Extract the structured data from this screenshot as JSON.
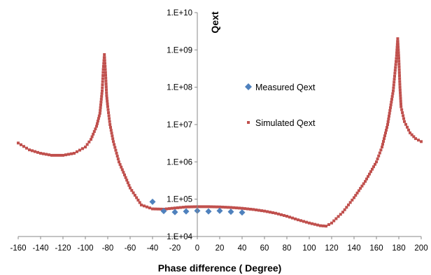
{
  "chart_data": {
    "type": "scatter",
    "xlabel": "Phase difference ( Degree)",
    "ylabel": "Qext",
    "xlim": [
      -160,
      200
    ],
    "ylim": [
      10000,
      10000000000
    ],
    "y_scale": "log",
    "x_ticks": [
      -160,
      -140,
      -120,
      -100,
      -80,
      -60,
      -40,
      -20,
      0,
      20,
      40,
      60,
      80,
      100,
      120,
      140,
      160,
      180,
      200
    ],
    "x_tick_labels": [
      "-160",
      "-140",
      "-120",
      "-100",
      "-80",
      "-60",
      "-40",
      "-20",
      "0",
      "20",
      "40",
      "60",
      "80",
      "100",
      "120",
      "140",
      "160",
      "180",
      "200"
    ],
    "y_ticks": [
      10000,
      100000,
      1000000,
      10000000,
      100000000,
      1000000000,
      10000000000
    ],
    "y_tick_labels": [
      "1.E+04",
      "1.E+05",
      "1.E+06",
      "1.E+07",
      "1.E+08",
      "1.E+09",
      "1.E+10"
    ],
    "grid": false,
    "legend_position": "center",
    "series": [
      {
        "name": "Measured Qext",
        "marker": "diamond",
        "color": "#4f81bd",
        "x": [
          -40,
          -30,
          -20,
          -10,
          0,
          10,
          20,
          30,
          40
        ],
        "y": [
          85000,
          48000,
          45000,
          47000,
          49000,
          47000,
          49000,
          46000,
          44000
        ]
      },
      {
        "name": "Simulated Qext",
        "marker": "square",
        "color": "#c0504d",
        "x": [
          -160,
          -150,
          -140,
          -130,
          -120,
          -110,
          -100,
          -95,
          -90,
          -87,
          -85,
          -84,
          -83,
          -82,
          -81,
          -80,
          -78,
          -75,
          -70,
          -60,
          -50,
          -40,
          -30,
          -20,
          -10,
          0,
          10,
          20,
          30,
          40,
          50,
          60,
          70,
          80,
          90,
          100,
          110,
          115,
          120,
          130,
          140,
          150,
          160,
          165,
          170,
          175,
          178,
          179,
          180,
          181,
          182,
          185,
          190,
          195,
          200
        ],
        "y": [
          3200000,
          2100000,
          1700000,
          1500000,
          1500000,
          1700000,
          2500000,
          4000000,
          9000000,
          20000000,
          80000000,
          300000000,
          750000000,
          250000000,
          60000000,
          30000000,
          10000000,
          3500000,
          1000000,
          200000,
          70000,
          55000,
          54000,
          58000,
          62000,
          63000,
          63000,
          62000,
          60000,
          57000,
          53000,
          48000,
          42000,
          35000,
          28000,
          23000,
          19500,
          19000,
          23000,
          45000,
          110000,
          300000,
          1000000,
          2500000,
          10000000,
          80000000,
          700000000,
          2000000000,
          600000000,
          100000000,
          30000000,
          12000000,
          6000000,
          4200000,
          3500000
        ]
      }
    ]
  }
}
